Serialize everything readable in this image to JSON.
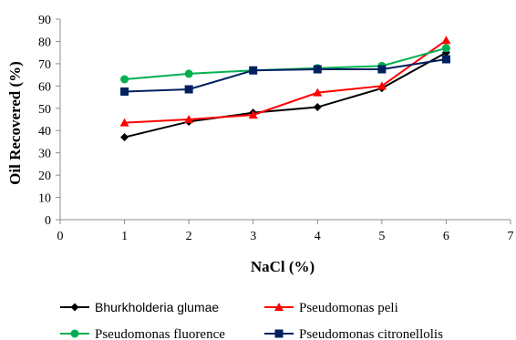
{
  "chart_data": {
    "type": "line",
    "title": "",
    "xlabel": "NaCl (%)",
    "ylabel": "Oil Recovered (%)",
    "xlim": [
      0,
      7
    ],
    "ylim": [
      0,
      90
    ],
    "x_ticks": [
      0,
      1,
      2,
      3,
      4,
      5,
      6,
      7
    ],
    "y_ticks": [
      0,
      10,
      20,
      30,
      40,
      50,
      60,
      70,
      80,
      90
    ],
    "grid": false,
    "legend_position": "bottom",
    "series": [
      {
        "name": "Bhurkholderia glumae",
        "color": "#000000",
        "marker": "diamond",
        "x": [
          1,
          2,
          3,
          4,
          5,
          6
        ],
        "y": [
          37,
          44,
          48,
          50.5,
          59,
          75
        ]
      },
      {
        "name": "Pseudomonas peli",
        "color": "#ff0000",
        "marker": "triangle",
        "x": [
          1,
          2,
          3,
          4,
          5,
          6
        ],
        "y": [
          43.5,
          45,
          47,
          57,
          60,
          80.5
        ]
      },
      {
        "name": "Pseudomonas fluorence",
        "color": "#00b050",
        "marker": "circle",
        "x": [
          1,
          2,
          3,
          4,
          5,
          6
        ],
        "y": [
          63,
          65.5,
          67,
          68,
          69,
          77
        ]
      },
      {
        "name": "Pseudomonas citronellolis",
        "color": "#002060",
        "marker": "square",
        "x": [
          1,
          2,
          3,
          4,
          5,
          6
        ],
        "y": [
          57.5,
          58.5,
          67,
          67.5,
          67.5,
          72
        ]
      }
    ]
  }
}
